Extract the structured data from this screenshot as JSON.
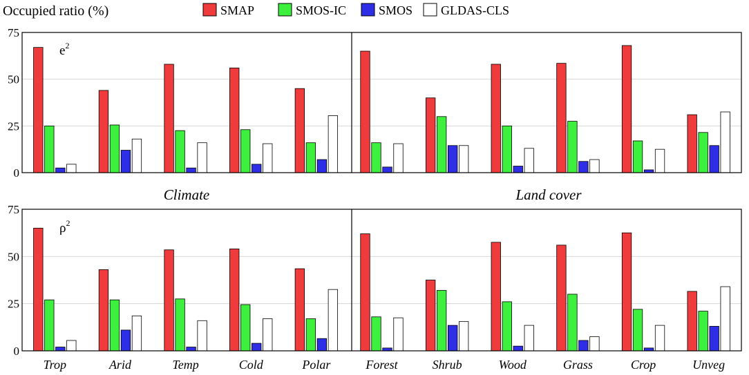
{
  "chart_data": {
    "type": "bar",
    "ylabel": "Occupied ratio (%)",
    "ylim": [
      0,
      75
    ],
    "yticks": [
      0,
      25,
      50,
      75
    ],
    "grid": true,
    "legend_position": "top",
    "series": [
      {
        "name": "SMAP",
        "color": "#ef3b3b"
      },
      {
        "name": "SMOS-IC",
        "color": "#3ef03e"
      },
      {
        "name": "SMOS",
        "color": "#2e2ee6"
      },
      {
        "name": "GLDAS-CLS",
        "color": "#ffffff"
      }
    ],
    "groups": [
      {
        "name": "Climate",
        "categories": [
          "Trop",
          "Arid",
          "Temp",
          "Cold",
          "Polar"
        ]
      },
      {
        "name": "Land cover",
        "categories": [
          "Forest",
          "Shrub",
          "Wood",
          "Grass",
          "Crop",
          "Unveg"
        ]
      }
    ],
    "panels": [
      {
        "label_base": "e",
        "label_sup": "2",
        "values": {
          "SMAP": [
            67,
            44,
            58,
            56,
            45,
            65,
            40,
            58,
            58.5,
            68,
            31
          ],
          "SMOS-IC": [
            25,
            25.5,
            22.5,
            23,
            16,
            16,
            30,
            25,
            27.5,
            17,
            21.5
          ],
          "SMOS": [
            2.5,
            12,
            2.5,
            4.5,
            7,
            3,
            14.5,
            3.5,
            6,
            1.5,
            14.5
          ],
          "GLDAS-CLS": [
            4.5,
            18,
            16,
            15.5,
            30.5,
            15.5,
            14.5,
            13,
            7,
            12.5,
            32.5
          ]
        }
      },
      {
        "label_base": "ρ",
        "label_sup": "2",
        "values": {
          "SMAP": [
            65,
            43,
            53.5,
            54,
            43.5,
            62,
            37.5,
            57.5,
            56,
            62.5,
            31.5
          ],
          "SMOS-IC": [
            27,
            27,
            27.5,
            24.5,
            17,
            18,
            32,
            26,
            30,
            22,
            21
          ],
          "SMOS": [
            2,
            11,
            2,
            4,
            6.5,
            1.5,
            13.5,
            2.5,
            5.5,
            1.5,
            13
          ],
          "GLDAS-CLS": [
            5.5,
            18.5,
            16,
            17,
            32.5,
            17.5,
            15.5,
            13.5,
            7.5,
            13.5,
            34
          ]
        }
      }
    ]
  }
}
